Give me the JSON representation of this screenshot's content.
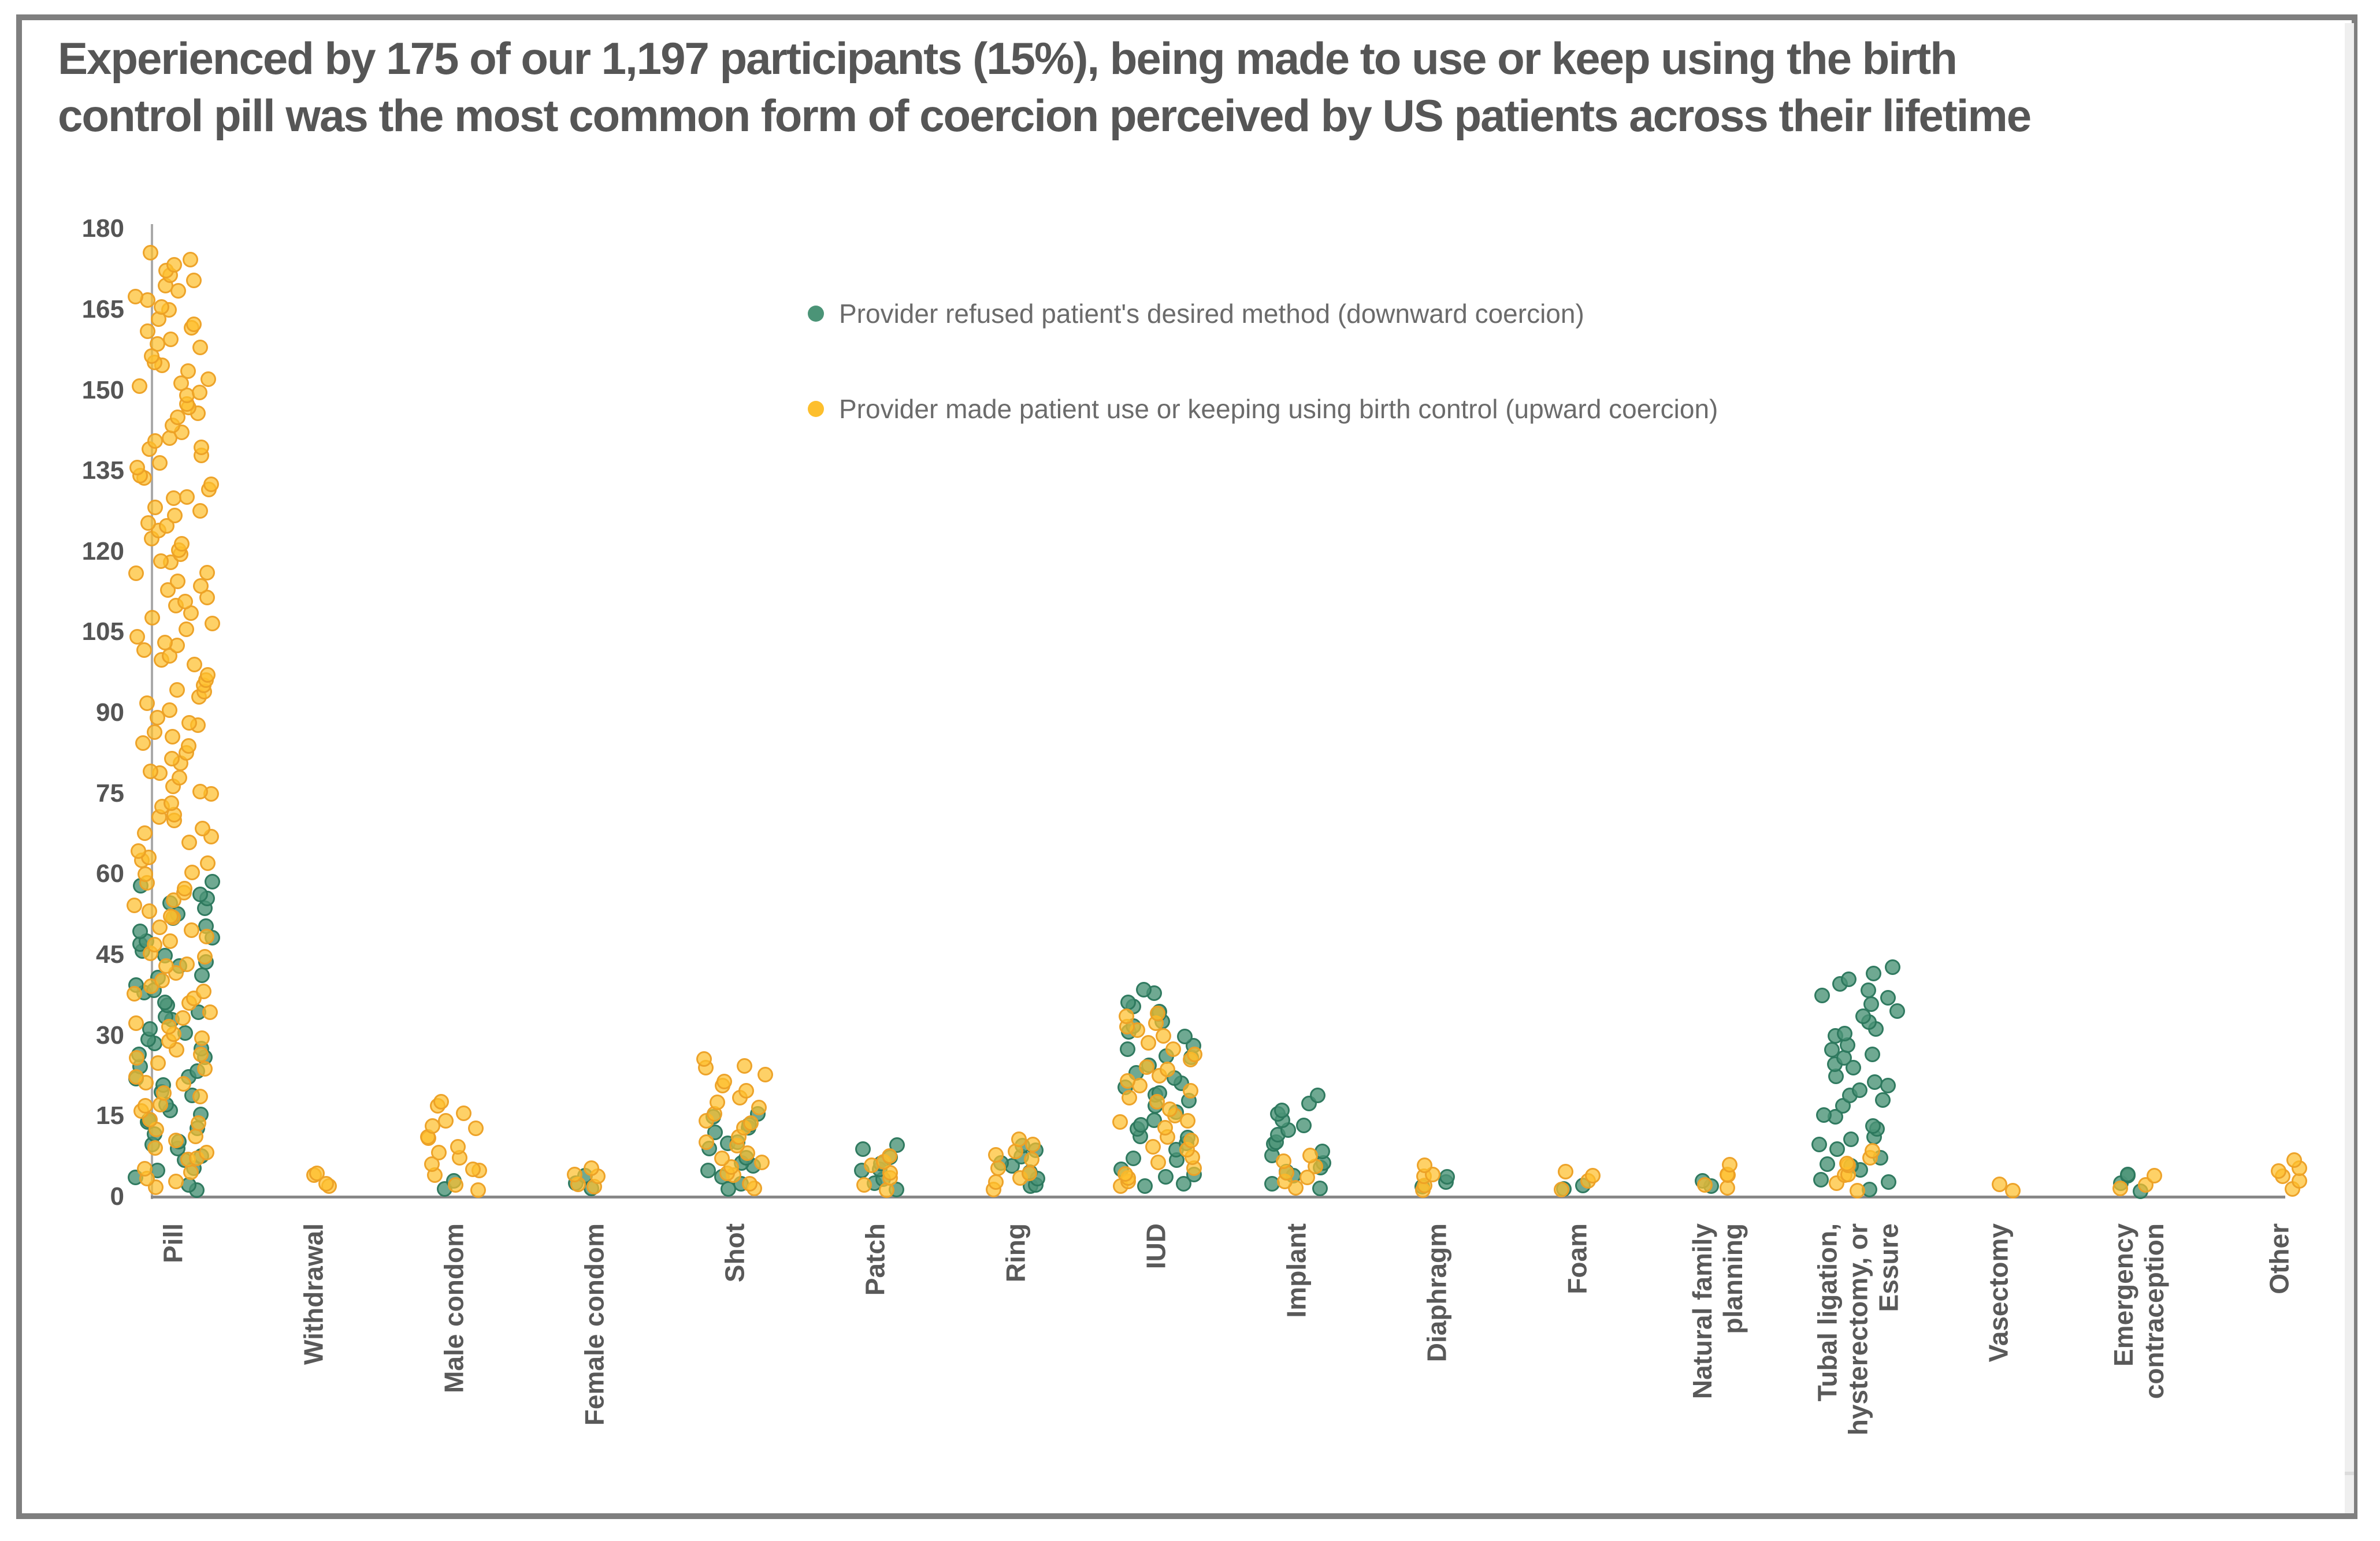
{
  "title": {
    "line1": "Experienced by 175 of our 1,197 participants (15%), being made to use or keep using the birth",
    "line2": "control pill was the most common form of coercion perceived by US patients across their lifetime"
  },
  "legend": {
    "items": [
      {
        "label": "Provider refused patient's desired method (downward coercion)",
        "color": "#4B9477"
      },
      {
        "label": "Provider made patient use or keeping using birth control (upward coercion)",
        "color": "#FDBF2D"
      }
    ]
  },
  "y_axis": {
    "ticks": [
      180,
      165,
      150,
      135,
      120,
      105,
      90,
      75,
      60,
      45,
      30,
      15,
      0
    ]
  },
  "x_axis": {
    "label_lines": [
      [
        "Pill"
      ],
      [
        "Withdrawal"
      ],
      [
        "Male condom"
      ],
      [
        "Female condom"
      ],
      [
        "Shot"
      ],
      [
        "Patch"
      ],
      [
        "Ring"
      ],
      [
        "IUD"
      ],
      [
        "Implant"
      ],
      [
        "Diaphragm"
      ],
      [
        "Foam"
      ],
      [
        "Natural family",
        "planning"
      ],
      [
        "Tubal ligation,",
        "hysterectomy, or",
        "Essure"
      ],
      [
        "Vasectomy"
      ],
      [
        "Emergency",
        "contraception"
      ],
      [
        "Other"
      ]
    ]
  },
  "chart_data": {
    "type": "scatter",
    "subtype": "jittered-dot-strip; each dot represents one participant, dots pile from 0 up to the series count for that method",
    "title": "Experienced by 175 of our 1,197 participants (15%), being made to use or keep using the birth control pill was the most common form of coercion perceived by US patients across their lifetime",
    "categories": [
      "Pill",
      "Withdrawal",
      "Male condom",
      "Female condom",
      "Shot",
      "Patch",
      "Ring",
      "IUD",
      "Implant",
      "Diaphragm",
      "Foam",
      "Natural family planning",
      "Tubal ligation, hysterectomy, or Essure",
      "Vasectomy",
      "Emergency contraception",
      "Other"
    ],
    "series": [
      {
        "name": "Provider refused patient's desired method (downward coercion)",
        "color": "#4B9477",
        "counts": [
          58,
          0,
          2,
          3,
          15,
          9,
          9,
          38,
          18,
          3,
          2,
          2,
          42,
          0,
          4,
          0
        ]
      },
      {
        "name": "Provider made patient use or keeping using birth control (upward coercion)",
        "color": "#FDBF2D",
        "counts": [
          175,
          4,
          17,
          5,
          25,
          7,
          10,
          34,
          7,
          5,
          4,
          5,
          8,
          2,
          3,
          6
        ]
      }
    ],
    "xlabel": "",
    "ylabel": "",
    "ylim": [
      0,
      180
    ],
    "yticks": [
      0,
      15,
      30,
      45,
      60,
      75,
      90,
      105,
      120,
      135,
      150,
      165,
      180
    ],
    "grid": false,
    "legend_position": "top-center-inside"
  }
}
